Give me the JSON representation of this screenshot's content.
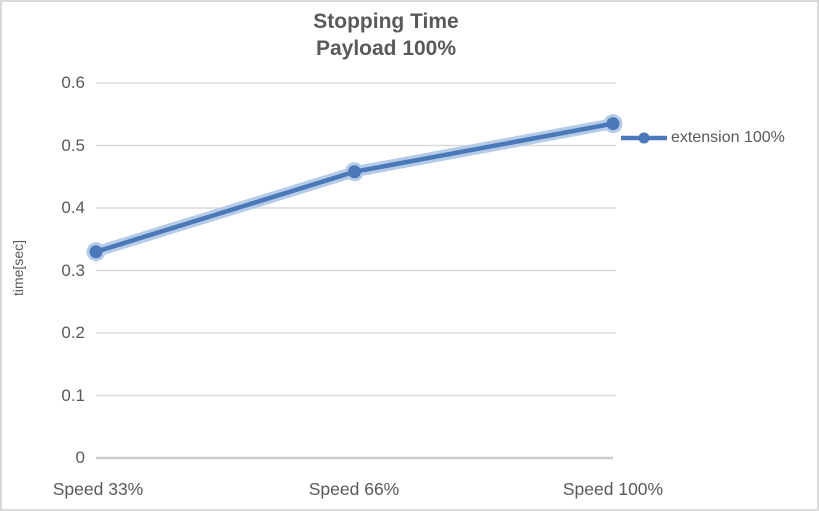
{
  "chart_data": {
    "type": "line",
    "title": "Stopping Time",
    "subtitle": "Payload 100%",
    "ylabel": "time[sec]",
    "xlabel": "",
    "categories": [
      "Speed 33%",
      "Speed 66%",
      "Speed 100%"
    ],
    "series": [
      {
        "name": "extension 100%",
        "values": [
          0.33,
          0.458,
          0.535
        ],
        "color": "#4a78b8",
        "halo_color": "#b6cbe7",
        "marker": "circle"
      }
    ],
    "ylim": [
      0,
      0.6
    ],
    "ytick_step": 0.1,
    "ytick_labels": [
      "0",
      "0.1",
      "0.2",
      "0.3",
      "0.4",
      "0.5",
      "0.6"
    ],
    "grid": true,
    "legend_position": "right",
    "colors": {
      "text": "#595959",
      "gridline": "#d9d9d9",
      "axis_line": "#cdcdcd",
      "background": "#ffffff",
      "border": "#d9d9d9"
    }
  }
}
